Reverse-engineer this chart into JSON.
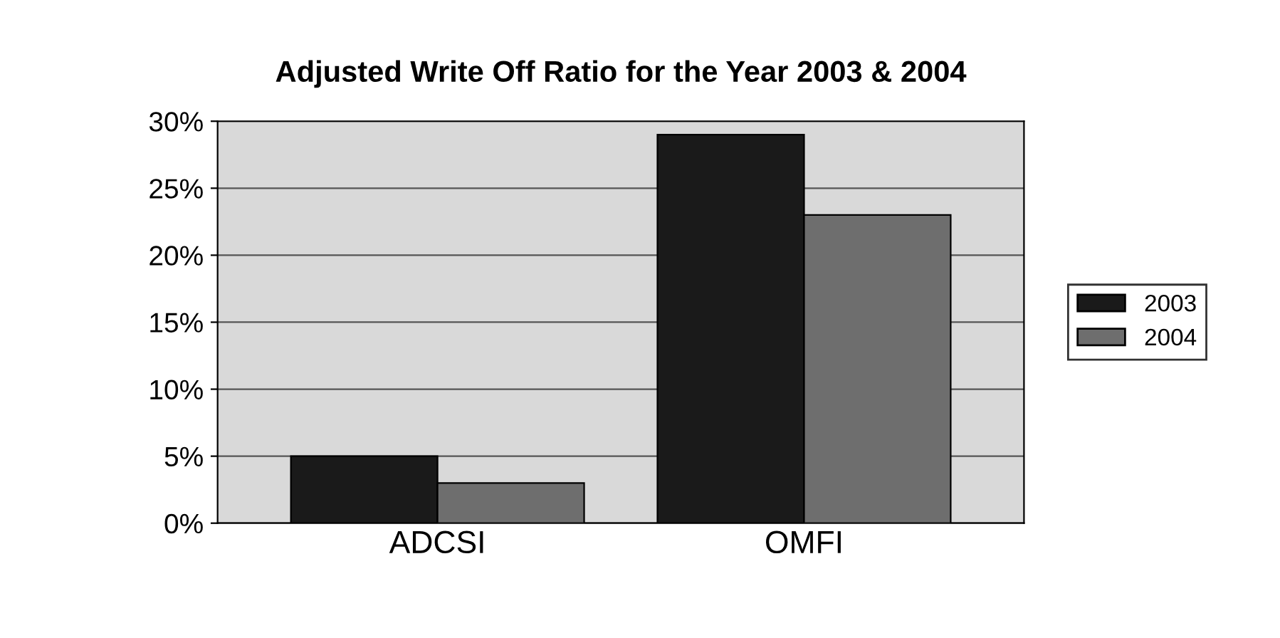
{
  "chart_data": {
    "type": "bar",
    "title": "Adjusted Write Off Ratio for the Year 2003 & 2004",
    "categories": [
      "ADCSI",
      "OMFI"
    ],
    "series": [
      {
        "name": "2003",
        "color": "#1a1a1a",
        "values": [
          5,
          29
        ]
      },
      {
        "name": "2004",
        "color": "#6e6e6e",
        "values": [
          3,
          23
        ]
      }
    ],
    "ylim": [
      0,
      30
    ],
    "yticks": [
      {
        "value": 0,
        "label": "0%"
      },
      {
        "value": 5,
        "label": "5%"
      },
      {
        "value": 10,
        "label": "10%"
      },
      {
        "value": 15,
        "label": "15%"
      },
      {
        "value": 20,
        "label": "20%"
      },
      {
        "value": 25,
        "label": "25%"
      },
      {
        "value": 30,
        "label": "30%"
      }
    ],
    "grid": "y",
    "legend": "right"
  }
}
